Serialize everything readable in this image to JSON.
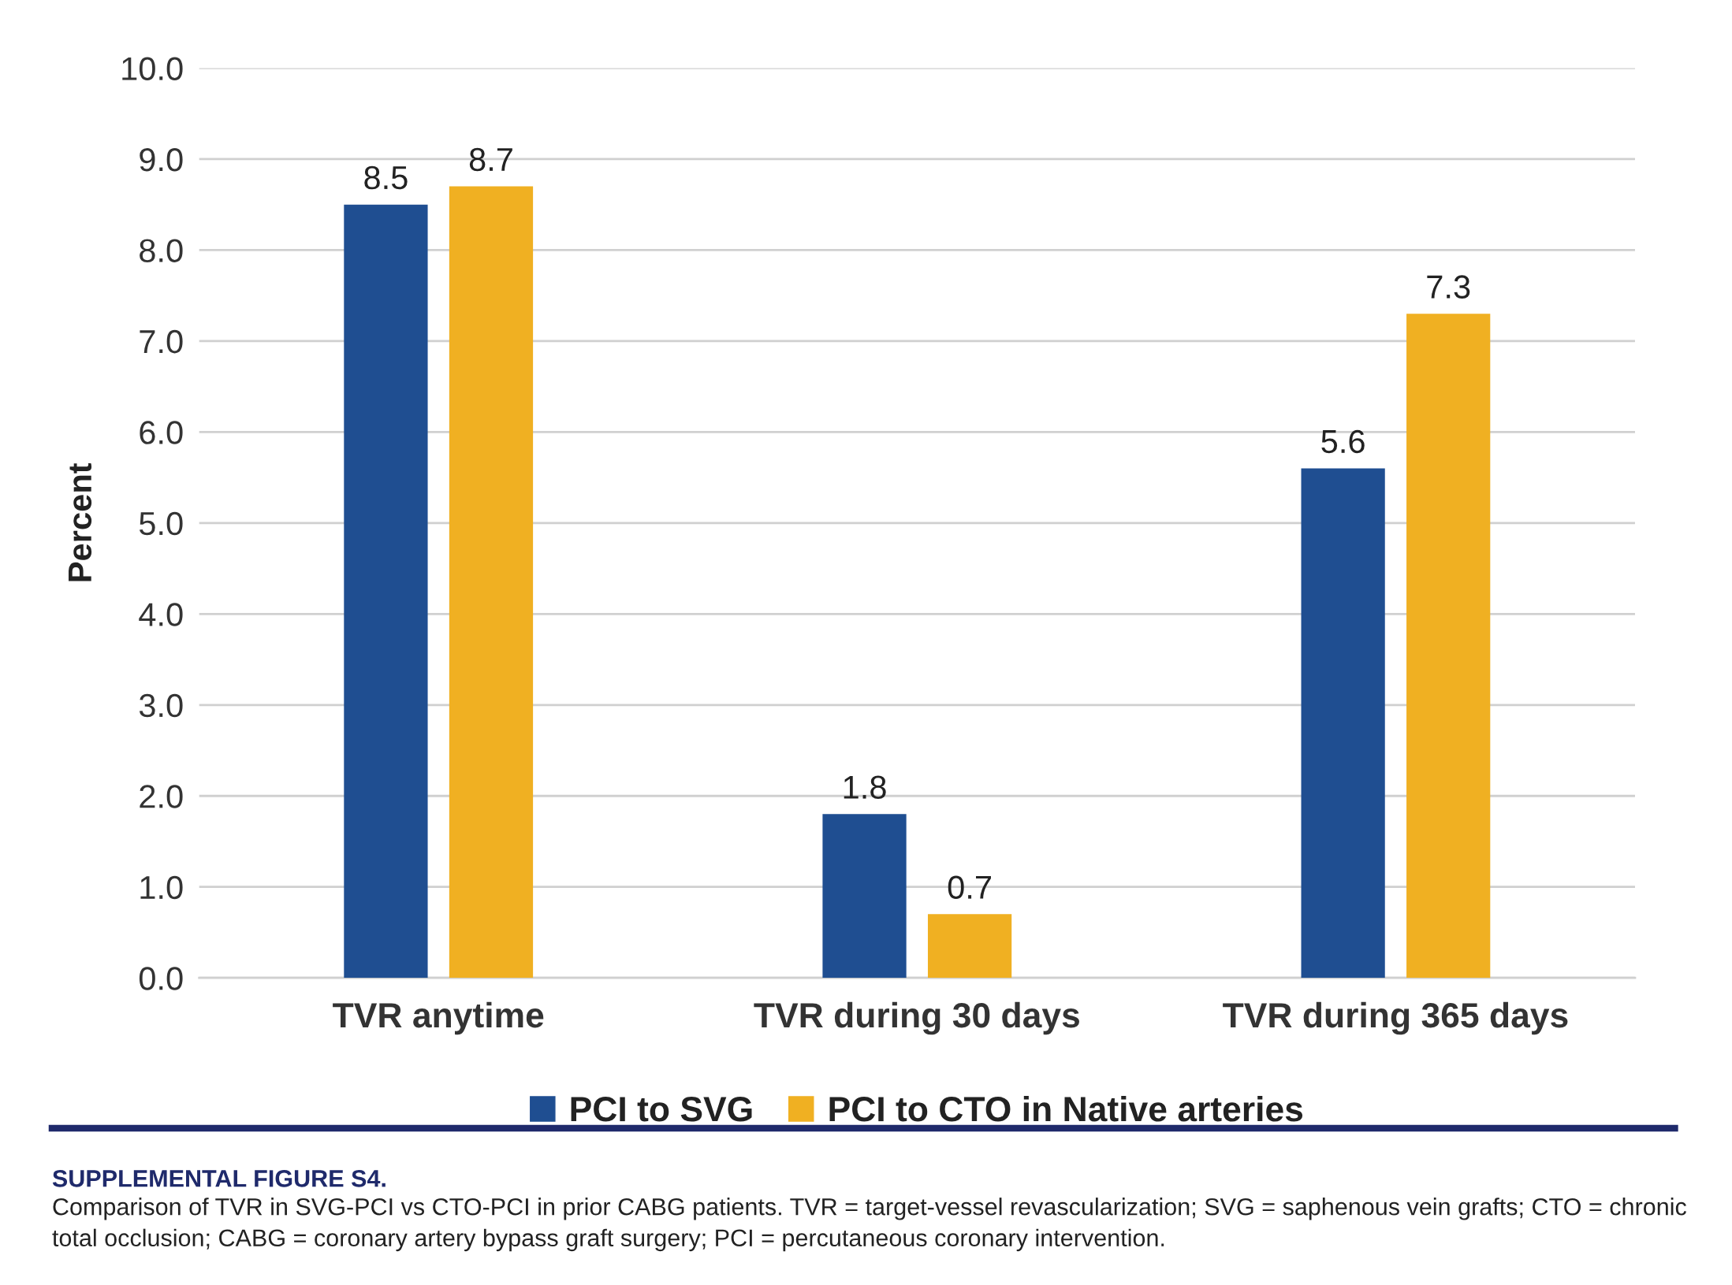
{
  "chart_data": {
    "type": "bar",
    "ylabel": "Percent",
    "categories": [
      "TVR anytime",
      "TVR during 30 days",
      "TVR during 365 days"
    ],
    "series": [
      {
        "name": "PCI to SVG",
        "color": "#1f4e91",
        "values": [
          8.5,
          1.8,
          5.6
        ]
      },
      {
        "name": "PCI to CTO in Native arteries",
        "color": "#f0b022",
        "values": [
          8.7,
          0.7,
          7.3
        ]
      }
    ],
    "ylim": [
      0,
      10
    ],
    "yticks": [
      {
        "value": 0,
        "label": "0.0"
      },
      {
        "value": 1,
        "label": "1.0"
      },
      {
        "value": 2,
        "label": "2.0"
      },
      {
        "value": 3,
        "label": "3.0"
      },
      {
        "value": 4,
        "label": "4.0"
      },
      {
        "value": 5,
        "label": "5.0"
      },
      {
        "value": 6,
        "label": "6.0"
      },
      {
        "value": 7,
        "label": "7.0"
      },
      {
        "value": 8,
        "label": "8.0"
      },
      {
        "value": 9,
        "label": "9.0"
      },
      {
        "value": 10,
        "label": "10.0"
      }
    ],
    "grid": "y",
    "legend": "bottom",
    "data_labels": true,
    "annotations": [
      "SUPPLEMENTAL FIGURE S4.",
      "Comparison of TVR in SVG-PCI vs CTO-PCI in prior CABG patients. TVR = target-vessel revascularization; SVG = saphenous vein grafts; CTO = chronic total occlusion; CABG = coronary artery bypass graft surgery; PCI = percutaneous coronary intervention."
    ]
  }
}
